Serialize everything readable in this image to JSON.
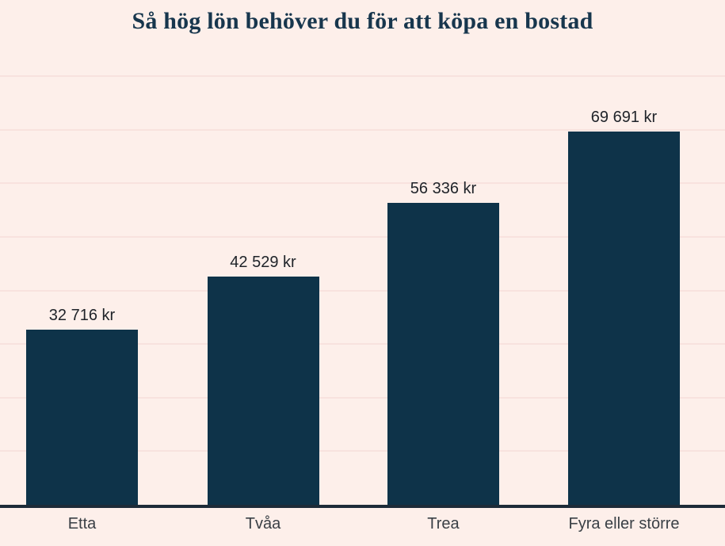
{
  "title": "Så hög lön behöver du för att köpa en bostad",
  "chart_data": {
    "type": "bar",
    "title": "Så hög lön behöver du för att köpa en bostad",
    "categories": [
      "Etta",
      "Tvåa",
      "Trea",
      "Fyra eller större"
    ],
    "values": [
      32716,
      42529,
      56336,
      69691
    ],
    "value_labels": [
      "32 716 kr",
      "42 529 kr",
      "56 336 kr",
      "69 691 kr"
    ],
    "unit": "kr",
    "xlabel": "",
    "ylabel": "",
    "ylim": [
      0,
      80000
    ],
    "grid_step": 10000,
    "grid": "horizontal-only, no y tick labels",
    "legend_position": "none"
  },
  "colors": {
    "background": "#fdefea",
    "bar": "#0e3349",
    "title": "#17364d",
    "gridline": "#f8e2de",
    "axis": "#1d2b38",
    "value_label": "#20242a",
    "category_label": "#3a4046"
  }
}
